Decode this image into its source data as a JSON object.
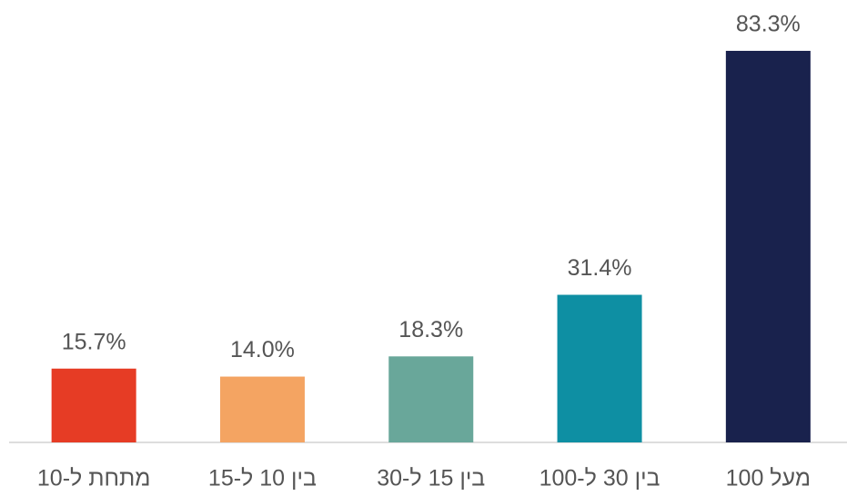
{
  "chart_data": {
    "type": "bar",
    "categories": [
      "מתחת ל-10",
      "בין 10 ל-15",
      "בין 15 ל-30",
      "בין 30 ל-100",
      "מעל 100"
    ],
    "values": [
      15.7,
      14.0,
      18.3,
      31.4,
      83.3
    ],
    "value_labels": [
      "15.7%",
      "14.0%",
      "18.3%",
      "31.4%",
      "83.3%"
    ],
    "colors": [
      "#e63c25",
      "#f4a462",
      "#69a79a",
      "#0e8fa3",
      "#19224d"
    ],
    "ylim": [
      0,
      90
    ]
  }
}
